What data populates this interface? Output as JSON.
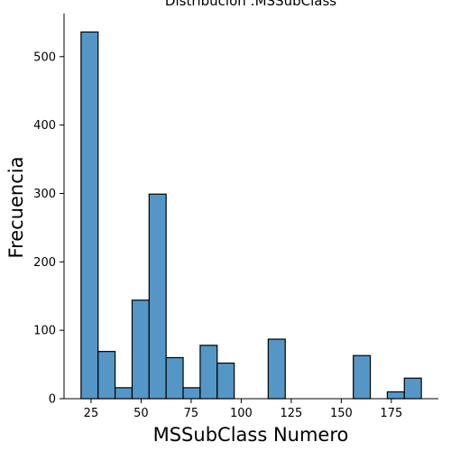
{
  "chart_data": {
    "type": "bar",
    "title": "Distribución :MSSubClass",
    "xlabel": "MSSubClass Numero",
    "ylabel": "Frecuencia",
    "xlim": [
      11.5,
      198.5
    ],
    "ylim": [
      0,
      563
    ],
    "xticks": [
      25,
      50,
      75,
      100,
      125,
      150,
      175
    ],
    "yticks": [
      0,
      100,
      200,
      300,
      400,
      500
    ],
    "bin_width": 8.5,
    "bins": [
      {
        "x0": 20.0,
        "x1": 28.5,
        "count": 536
      },
      {
        "x0": 28.5,
        "x1": 37.0,
        "count": 69
      },
      {
        "x0": 37.0,
        "x1": 45.5,
        "count": 16
      },
      {
        "x0": 45.5,
        "x1": 54.0,
        "count": 144
      },
      {
        "x0": 54.0,
        "x1": 62.5,
        "count": 299
      },
      {
        "x0": 62.5,
        "x1": 71.0,
        "count": 60
      },
      {
        "x0": 71.0,
        "x1": 79.5,
        "count": 16
      },
      {
        "x0": 79.5,
        "x1": 88.0,
        "count": 78
      },
      {
        "x0": 88.0,
        "x1": 96.5,
        "count": 52
      },
      {
        "x0": 96.5,
        "x1": 105.0,
        "count": 0
      },
      {
        "x0": 105.0,
        "x1": 113.5,
        "count": 0
      },
      {
        "x0": 113.5,
        "x1": 122.0,
        "count": 87
      },
      {
        "x0": 122.0,
        "x1": 130.5,
        "count": 0
      },
      {
        "x0": 130.5,
        "x1": 139.0,
        "count": 0
      },
      {
        "x0": 139.0,
        "x1": 147.5,
        "count": 0
      },
      {
        "x0": 147.5,
        "x1": 156.0,
        "count": 0
      },
      {
        "x0": 156.0,
        "x1": 164.5,
        "count": 63
      },
      {
        "x0": 164.5,
        "x1": 173.0,
        "count": 0
      },
      {
        "x0": 173.0,
        "x1": 181.5,
        "count": 10
      },
      {
        "x0": 181.5,
        "x1": 190.0,
        "count": 30
      }
    ],
    "color": "#5497c6",
    "grid": false
  }
}
